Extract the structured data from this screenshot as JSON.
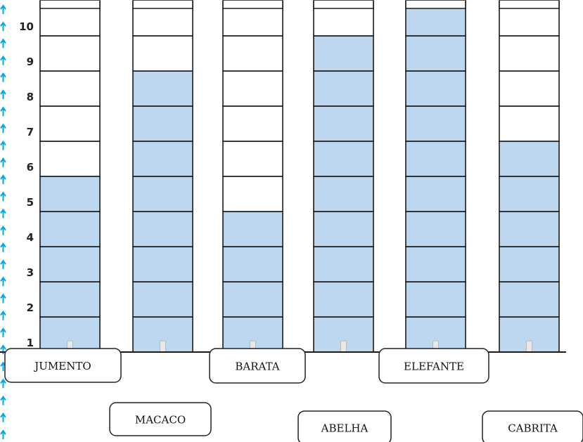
{
  "chart_data": {
    "type": "bar",
    "categories": [
      "JUMENTO",
      "MACACO",
      "BARATA",
      "ABELHA",
      "ELEFANTE",
      "CABRITA"
    ],
    "values": [
      5,
      8,
      4,
      9,
      10,
      6
    ],
    "y_ticks": [
      "1",
      "2",
      "3",
      "4",
      "5",
      "6",
      "7",
      "8",
      "9",
      "10"
    ],
    "ylim": [
      0,
      10
    ],
    "colors": {
      "filled": "#bdd7ee",
      "empty": "#ffffff",
      "outline": "#1a1a1a",
      "arrow": "#00a8e8"
    }
  }
}
